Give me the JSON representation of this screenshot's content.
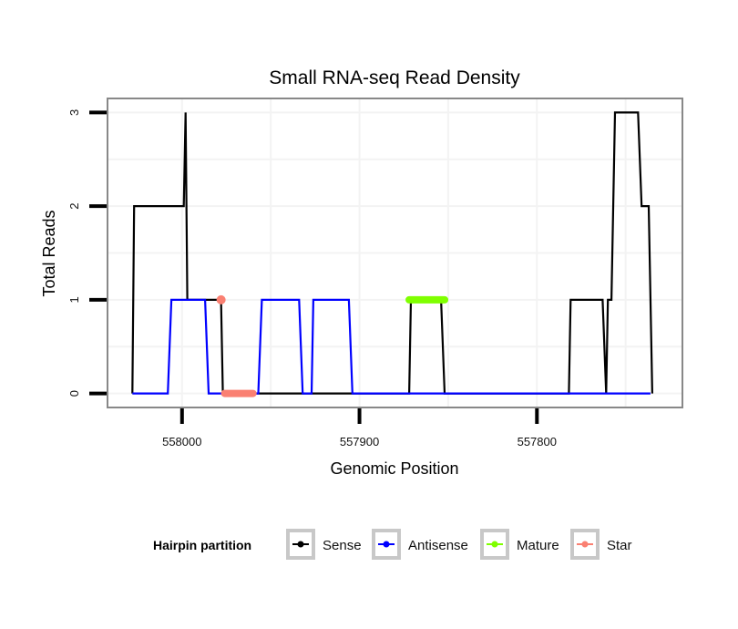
{
  "chart_data": {
    "type": "line",
    "title": "Small RNA-seq Read Density",
    "xlabel": "Genomic Position",
    "ylabel": "Total Reads",
    "xlim": [
      558042,
      557718
    ],
    "x_reversed": true,
    "ylim": [
      -0.15,
      3.15
    ],
    "xticks": [
      558000,
      557900,
      557800
    ],
    "xtick_labels": [
      "558000",
      "557900",
      "557800"
    ],
    "yticks": [
      0,
      1,
      2,
      3
    ],
    "ytick_labels": [
      "0",
      "1",
      "2",
      "3"
    ],
    "grid": true,
    "legend": {
      "title": "Hairpin partition",
      "position": "bottom",
      "entries": [
        {
          "name": "Sense",
          "color": "#000000"
        },
        {
          "name": "Antisense",
          "color": "#0000ff"
        },
        {
          "name": "Mature",
          "color": "#7fff00"
        },
        {
          "name": "Star",
          "color": "#fa8072"
        }
      ]
    },
    "series": [
      {
        "name": "Sense",
        "color": "#000000",
        "points": [
          [
            558028,
            0
          ],
          [
            558027,
            2
          ],
          [
            557999,
            2
          ],
          [
            557998,
            3
          ],
          [
            557997,
            1
          ],
          [
            557978,
            1
          ],
          [
            557977,
            0
          ],
          [
            557872,
            0
          ],
          [
            557871,
            1
          ],
          [
            557854,
            1
          ],
          [
            557852,
            0
          ],
          [
            557782,
            0
          ],
          [
            557781,
            1
          ],
          [
            557763,
            1
          ],
          [
            557761,
            0
          ],
          [
            557760,
            1
          ],
          [
            557758,
            1
          ],
          [
            557756,
            3
          ],
          [
            557743,
            3
          ],
          [
            557741,
            2
          ],
          [
            557737,
            2
          ],
          [
            557735,
            0
          ]
        ]
      },
      {
        "name": "Antisense",
        "color": "#0000ff",
        "points": [
          [
            558028,
            0
          ],
          [
            558008,
            0
          ],
          [
            558006,
            1
          ],
          [
            557987,
            1
          ],
          [
            557985,
            0
          ],
          [
            557957,
            0
          ],
          [
            557955,
            1
          ],
          [
            557934,
            1
          ],
          [
            557932,
            0
          ],
          [
            557927,
            0
          ],
          [
            557926,
            1
          ],
          [
            557906,
            1
          ],
          [
            557904,
            0
          ],
          [
            557736,
            0
          ]
        ]
      },
      {
        "name": "Mature",
        "color": "#7fff00",
        "points": [
          [
            557872,
            1
          ],
          [
            557852,
            1
          ]
        ]
      },
      {
        "name": "Star",
        "color": "#fa8072",
        "points": [
          [
            557978,
            1
          ]
        ],
        "segment": [
          [
            557976,
            0
          ],
          [
            557960,
            0
          ]
        ]
      }
    ]
  }
}
